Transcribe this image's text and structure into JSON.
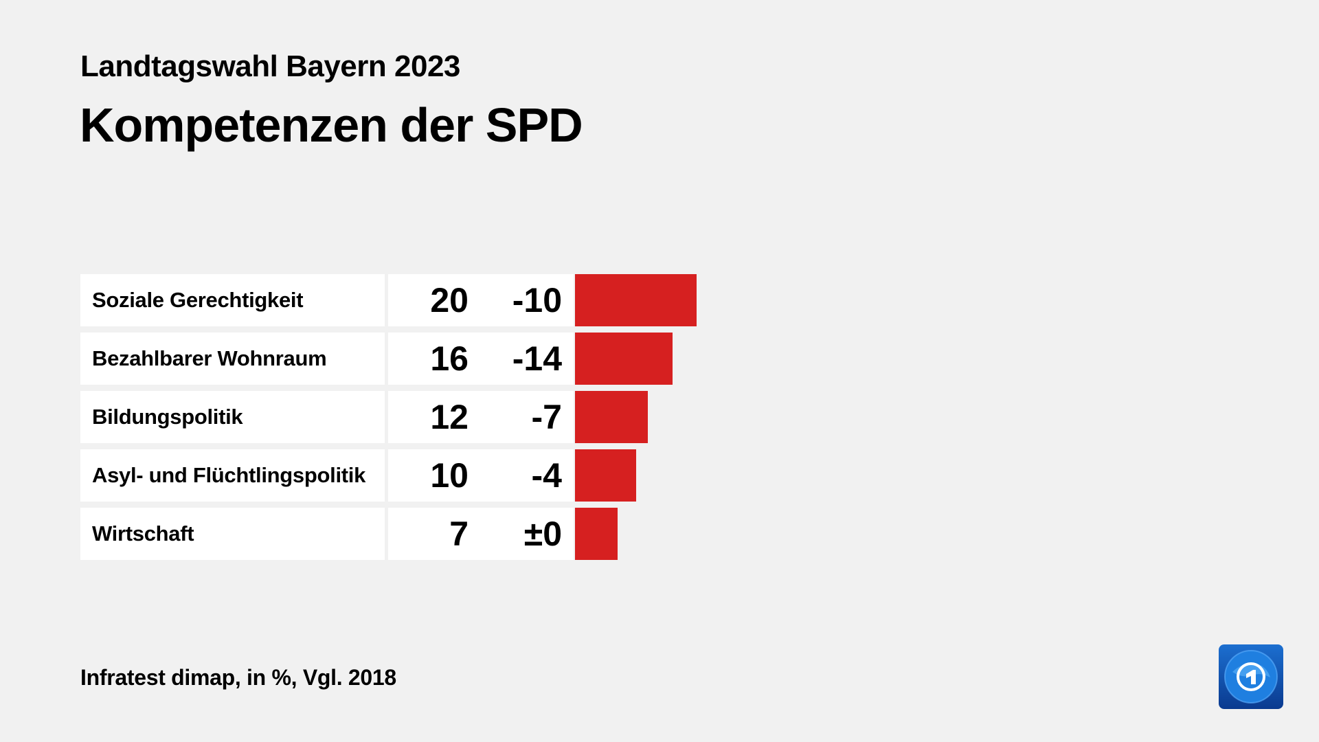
{
  "header": {
    "subtitle": "Landtagswahl Bayern 2023",
    "title": "Kompetenzen der SPD"
  },
  "chart_data": {
    "type": "bar",
    "title": "Kompetenzen der SPD",
    "subtitle": "Landtagswahl Bayern 2023",
    "categories": [
      "Soziale Gerechtigkeit",
      "Bezahlbarer Wohnraum",
      "Bildungspolitik",
      "Asyl- und Flüchtlingspolitik",
      "Wirtschaft"
    ],
    "values": [
      20,
      16,
      12,
      10,
      7
    ],
    "value_labels": [
      "20",
      "16",
      "12",
      "10",
      "7"
    ],
    "change_labels": [
      "-10",
      "-14",
      "-7",
      "-4",
      "±0"
    ],
    "changes": [
      -10,
      -14,
      -7,
      -4,
      0
    ],
    "unit": "%",
    "bar_color": "#d62020"
  },
  "footer": {
    "source": "Infratest dimap, in %, Vgl. 2018"
  },
  "logo": {
    "name": "tagesschau-logo"
  }
}
